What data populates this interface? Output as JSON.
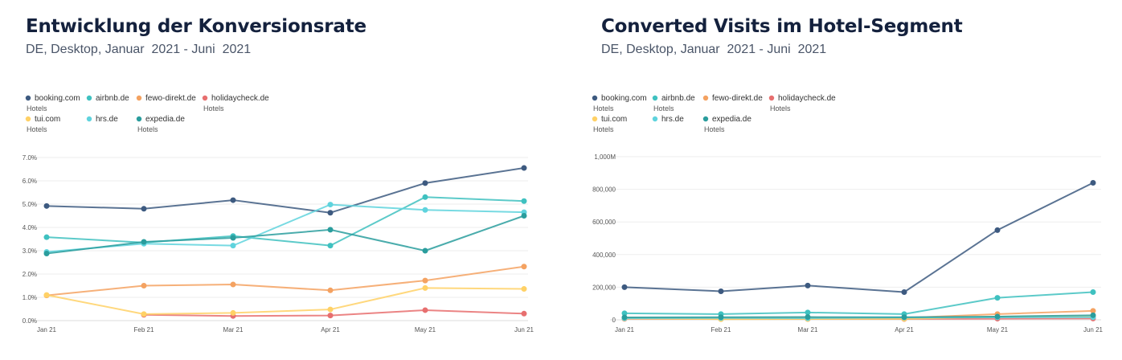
{
  "charts": [
    {
      "title": "Entwicklung der Konversionsrate",
      "subtitle": "DE, Desktop, Januar  2021 - Juni  2021"
    },
    {
      "title": "Converted Visits im Hotel-Segment",
      "subtitle": "DE, Desktop, Januar  2021 - Juni  2021"
    }
  ],
  "chart_data": [
    {
      "type": "line",
      "categories": [
        "Jan 21",
        "Feb 21",
        "Mar 21",
        "Apr 21",
        "May 21",
        "Jun 21"
      ],
      "yticks": [
        "0.0%",
        "1.0%",
        "2.0%",
        "3.0%",
        "4.0%",
        "5.0%",
        "6.0%",
        "7.0%"
      ],
      "ylim": [
        0,
        7
      ],
      "grid": true,
      "legend_position": "top-left",
      "series": [
        {
          "name": "booking.com",
          "sub": "Hotels",
          "color": "#3d5a80",
          "values": [
            4.92,
            4.8,
            5.17,
            4.63,
            5.9,
            6.55
          ]
        },
        {
          "name": "airbnb.de",
          "sub": "",
          "color": "#3fc1c0",
          "values": [
            3.58,
            3.35,
            3.63,
            3.22,
            5.3,
            5.13
          ]
        },
        {
          "name": "fewo-direkt.de",
          "sub": "",
          "color": "#f4a261",
          "values": [
            1.08,
            1.5,
            1.55,
            1.3,
            1.72,
            2.32
          ]
        },
        {
          "name": "holidaycheck.de",
          "sub": "Hotels",
          "color": "#e76f6f",
          "values": [
            null,
            0.25,
            0.2,
            0.22,
            0.45,
            0.3
          ]
        },
        {
          "name": "tui.com",
          "sub": "Hotels",
          "color": "#ffd166",
          "values": [
            1.1,
            0.28,
            0.33,
            0.48,
            1.4,
            1.36
          ]
        },
        {
          "name": "hrs.de",
          "sub": "",
          "color": "#5fd3dd",
          "values": [
            2.95,
            3.3,
            3.22,
            4.98,
            4.75,
            4.65
          ]
        },
        {
          "name": "expedia.de",
          "sub": "Hotels",
          "color": "#2a9d9d",
          "values": [
            2.88,
            3.38,
            3.55,
            3.9,
            3.0,
            4.5
          ]
        }
      ]
    },
    {
      "type": "line",
      "categories": [
        "Jan 21",
        "Feb 21",
        "Mar 21",
        "Apr 21",
        "May 21",
        "Jun 21"
      ],
      "yticks": [
        "0",
        "200,000",
        "400,000",
        "600,000",
        "800,000",
        "1,000M"
      ],
      "ylim": [
        0,
        1000000
      ],
      "grid": true,
      "legend_position": "top-left",
      "series": [
        {
          "name": "booking.com",
          "sub": "Hotels",
          "color": "#3d5a80",
          "values": [
            200000,
            175000,
            210000,
            170000,
            550000,
            840000
          ]
        },
        {
          "name": "airbnb.de",
          "sub": "Hotels",
          "color": "#3fc1c0",
          "values": [
            40000,
            35000,
            45000,
            35000,
            135000,
            170000
          ]
        },
        {
          "name": "fewo-direkt.de",
          "sub": "",
          "color": "#f4a261",
          "values": [
            12000,
            12000,
            14000,
            12000,
            35000,
            55000
          ]
        },
        {
          "name": "holidaycheck.de",
          "sub": "Hotels",
          "color": "#e76f6f",
          "values": [
            6000,
            5000,
            5000,
            5000,
            7000,
            8000
          ]
        },
        {
          "name": "tui.com",
          "sub": "Hotels",
          "color": "#ffd166",
          "values": [
            8000,
            4000,
            5000,
            6000,
            20000,
            22000
          ]
        },
        {
          "name": "hrs.de",
          "sub": "",
          "color": "#5fd3dd",
          "values": [
            10000,
            11000,
            10000,
            14000,
            15000,
            16000
          ]
        },
        {
          "name": "expedia.de",
          "sub": "Hotels",
          "color": "#2a9d9d",
          "values": [
            15000,
            16000,
            17000,
            16000,
            20000,
            28000
          ]
        }
      ]
    }
  ]
}
